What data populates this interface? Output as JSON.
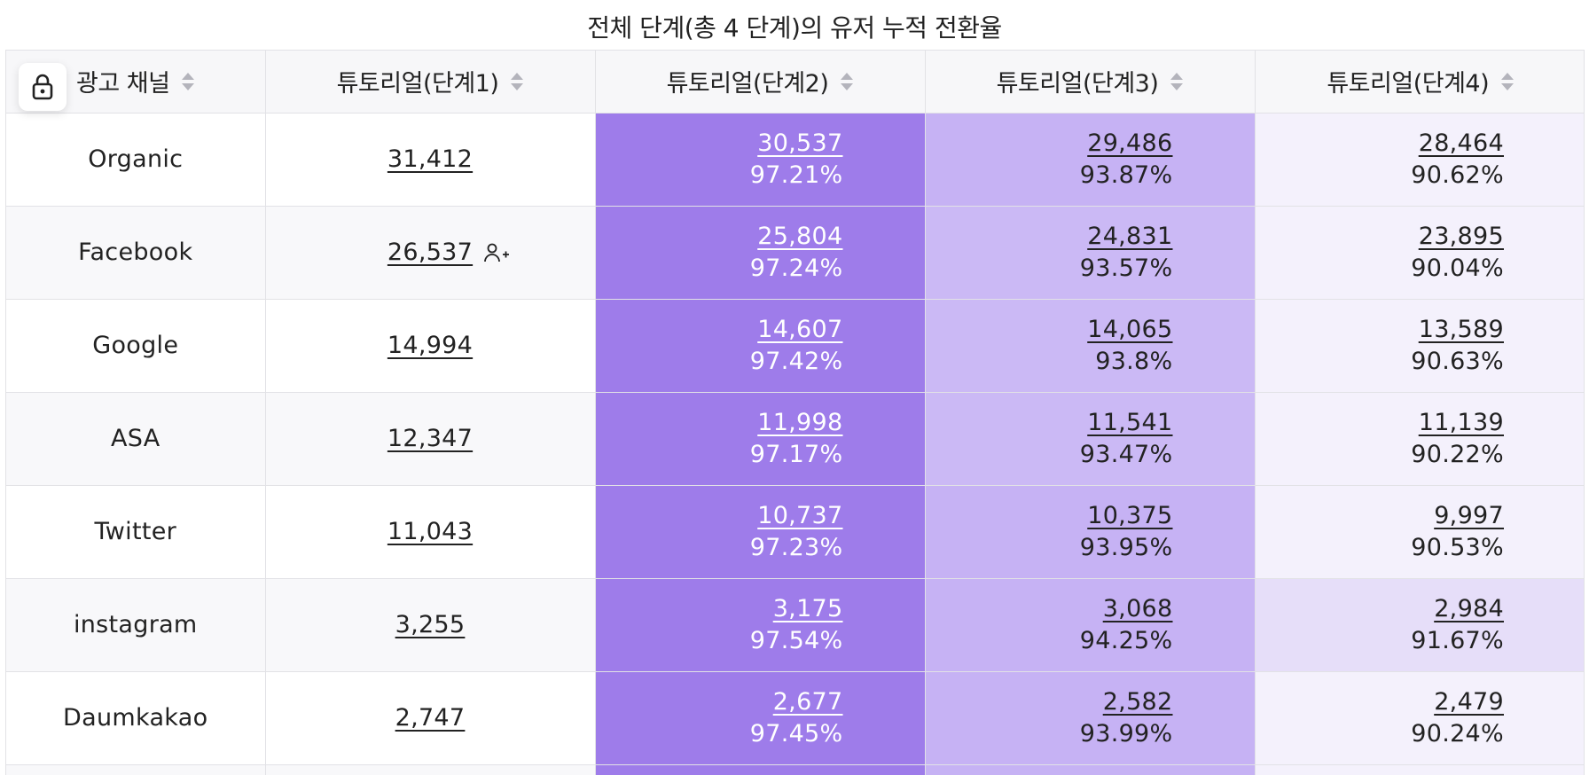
{
  "title": "전체 단계(총 4 단계)의 유저 누적 전환율",
  "columns": [
    "광고 채널",
    "튜토리얼(단계1)",
    "튜토리얼(단계2)",
    "튜토리얼(단계3)",
    "튜토리얼(단계4)"
  ],
  "rows": [
    {
      "channel": "Organic",
      "s1": "31,412",
      "s2": "30,537",
      "s2p": "97.21%",
      "s3": "29,486",
      "s3p": "93.87%",
      "s4": "28,464",
      "s4p": "90.62%"
    },
    {
      "channel": "Facebook",
      "s1": "26,537",
      "s2": "25,804",
      "s2p": "97.24%",
      "s3": "24,831",
      "s3p": "93.57%",
      "s4": "23,895",
      "s4p": "90.04%"
    },
    {
      "channel": "Google",
      "s1": "14,994",
      "s2": "14,607",
      "s2p": "97.42%",
      "s3": "14,065",
      "s3p": "93.8%",
      "s4": "13,589",
      "s4p": "90.63%"
    },
    {
      "channel": "ASA",
      "s1": "12,347",
      "s2": "11,998",
      "s2p": "97.17%",
      "s3": "11,541",
      "s3p": "93.47%",
      "s4": "11,139",
      "s4p": "90.22%"
    },
    {
      "channel": "Twitter",
      "s1": "11,043",
      "s2": "10,737",
      "s2p": "97.23%",
      "s3": "10,375",
      "s3p": "93.95%",
      "s4": "9,997",
      "s4p": "90.53%"
    },
    {
      "channel": "instagram",
      "s1": "3,255",
      "s2": "3,175",
      "s2p": "97.54%",
      "s3": "3,068",
      "s3p": "94.25%",
      "s4": "2,984",
      "s4p": "91.67%"
    },
    {
      "channel": "Daumkakao",
      "s1": "2,747",
      "s2": "2,677",
      "s2p": "97.45%",
      "s3": "2,582",
      "s3p": "93.99%",
      "s4": "2,479",
      "s4p": "90.24%"
    }
  ],
  "colors": {
    "step2_fill": "#9e7cea",
    "step3_fill": "#c6b2f4",
    "step4_fill": "#f4f1fc",
    "step4_highlight": "#e6def9",
    "header_bg": "#f7f7f9"
  },
  "icons": {
    "lock": "lock-icon",
    "sort": "sort-icon",
    "add_user": "add-user-icon"
  }
}
